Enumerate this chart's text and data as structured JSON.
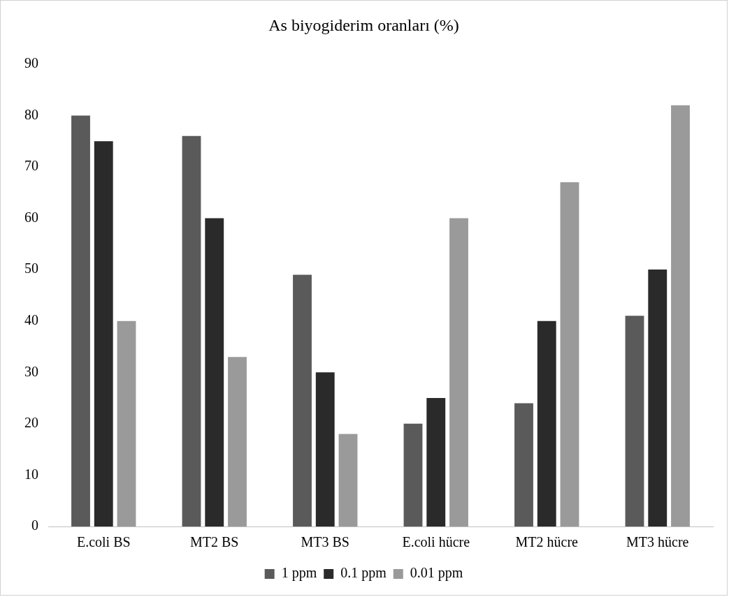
{
  "chart_data": {
    "type": "bar",
    "title": "As biyogiderim oranları (%)",
    "categories": [
      "E.coli BS",
      "MT2 BS",
      "MT3 BS",
      "E.coli hücre",
      "MT2 hücre",
      "MT3 hücre"
    ],
    "series": [
      {
        "name": "1 ppm",
        "color": "#5a5a5a",
        "values": [
          80,
          76,
          49,
          20,
          24,
          41
        ]
      },
      {
        "name": "0.1 ppm",
        "color": "#2a2a2a",
        "values": [
          75,
          60,
          30,
          25,
          40,
          50
        ]
      },
      {
        "name": "0.01 ppm",
        "color": "#9a9a9a",
        "values": [
          40,
          33,
          18,
          60,
          67,
          82
        ]
      }
    ],
    "ylim": [
      0,
      90
    ],
    "yticks": [
      0,
      10,
      20,
      30,
      40,
      50,
      60,
      70,
      80,
      90
    ],
    "grid": false,
    "legend": "bottom"
  }
}
